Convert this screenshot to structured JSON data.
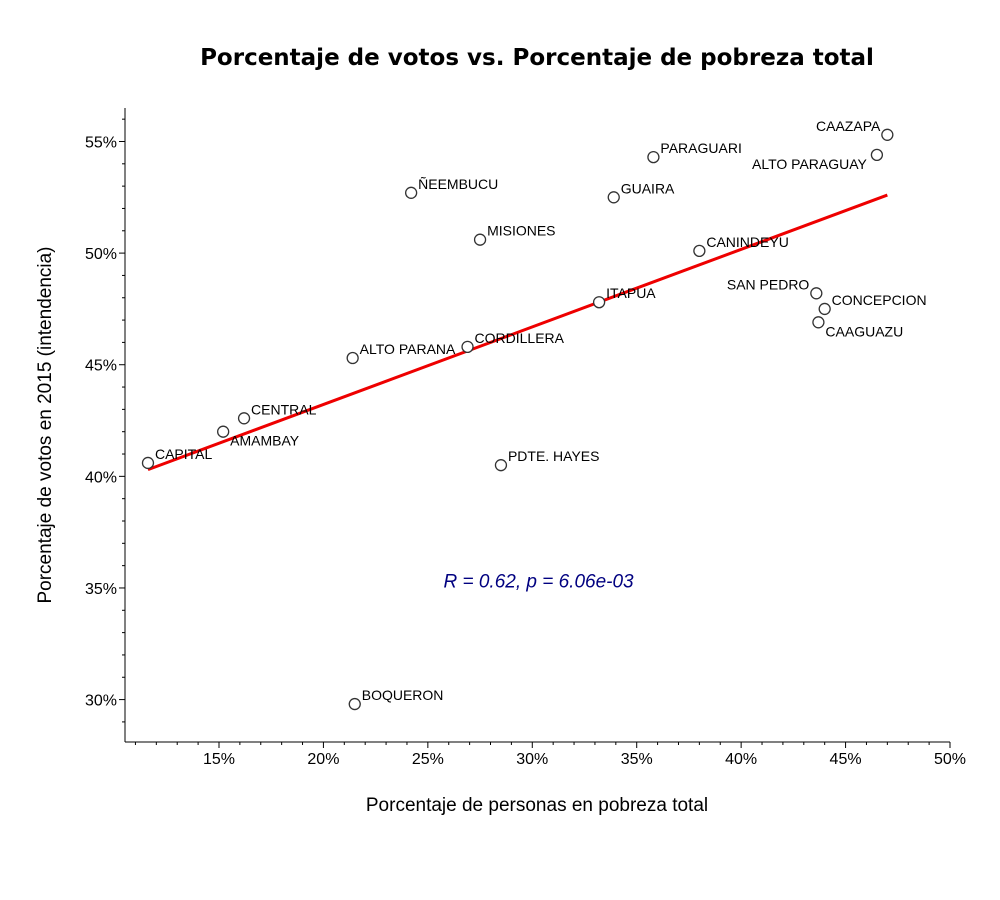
{
  "chart_data": {
    "type": "scatter",
    "title": "Porcentaje de votos vs. Porcentaje de pobreza total",
    "xlabel": "Porcentaje de personas en pobreza total",
    "ylabel": "Porcentaje de votos en 2015 (intendencia)",
    "xlim": [
      0.105,
      0.5
    ],
    "ylim": [
      0.281,
      0.565
    ],
    "x_ticks": [
      0.15,
      0.2,
      0.25,
      0.3,
      0.35,
      0.4,
      0.45,
      0.5
    ],
    "x_tick_labels": [
      "15%",
      "20%",
      "25%",
      "30%",
      "35%",
      "40%",
      "45%",
      "50%"
    ],
    "y_ticks": [
      0.3,
      0.35,
      0.4,
      0.45,
      0.5,
      0.55
    ],
    "y_tick_labels": [
      "30%",
      "35%",
      "40%",
      "45%",
      "50%",
      "55%"
    ],
    "grid": false,
    "points": [
      {
        "label": "CAPITAL",
        "x": 0.116,
        "y": 0.406,
        "label_pos": "right"
      },
      {
        "label": "AMAMBAY",
        "x": 0.152,
        "y": 0.42,
        "label_pos": "below-right"
      },
      {
        "label": "CENTRAL",
        "x": 0.162,
        "y": 0.426,
        "label_pos": "right"
      },
      {
        "label": "ALTO PARANA",
        "x": 0.214,
        "y": 0.453,
        "label_pos": "right"
      },
      {
        "label": "BOQUERON",
        "x": 0.215,
        "y": 0.298,
        "label_pos": "right"
      },
      {
        "label": "ÑEEMBUCU",
        "x": 0.242,
        "y": 0.527,
        "label_pos": "right"
      },
      {
        "label": "CORDILLERA",
        "x": 0.269,
        "y": 0.458,
        "label_pos": "right"
      },
      {
        "label": "MISIONES",
        "x": 0.275,
        "y": 0.506,
        "label_pos": "right"
      },
      {
        "label": "PDTE. HAYES",
        "x": 0.285,
        "y": 0.405,
        "label_pos": "right"
      },
      {
        "label": "ITAPUA",
        "x": 0.332,
        "y": 0.478,
        "label_pos": "right"
      },
      {
        "label": "GUAIRA",
        "x": 0.339,
        "y": 0.525,
        "label_pos": "right"
      },
      {
        "label": "PARAGUARI",
        "x": 0.358,
        "y": 0.543,
        "label_pos": "right"
      },
      {
        "label": "CANINDEYU",
        "x": 0.38,
        "y": 0.501,
        "label_pos": "right"
      },
      {
        "label": "SAN PEDRO",
        "x": 0.436,
        "y": 0.482,
        "label_pos": "left"
      },
      {
        "label": "CONCEPCION",
        "x": 0.44,
        "y": 0.475,
        "label_pos": "right"
      },
      {
        "label": "CAAGUAZU",
        "x": 0.437,
        "y": 0.469,
        "label_pos": "below-right"
      },
      {
        "label": "ALTO PARAGUAY",
        "x": 0.465,
        "y": 0.544,
        "label_pos": "below-left"
      },
      {
        "label": "CAAZAPA",
        "x": 0.47,
        "y": 0.553,
        "label_pos": "left"
      }
    ],
    "regression_line": {
      "color": "#ee0000",
      "x": [
        0.116,
        0.47
      ],
      "y": [
        0.403,
        0.526
      ]
    },
    "annotation": {
      "text": "R = 0.62, p = 6.06e-03",
      "color": "#000080",
      "x": 0.303,
      "y": 0.353
    }
  }
}
